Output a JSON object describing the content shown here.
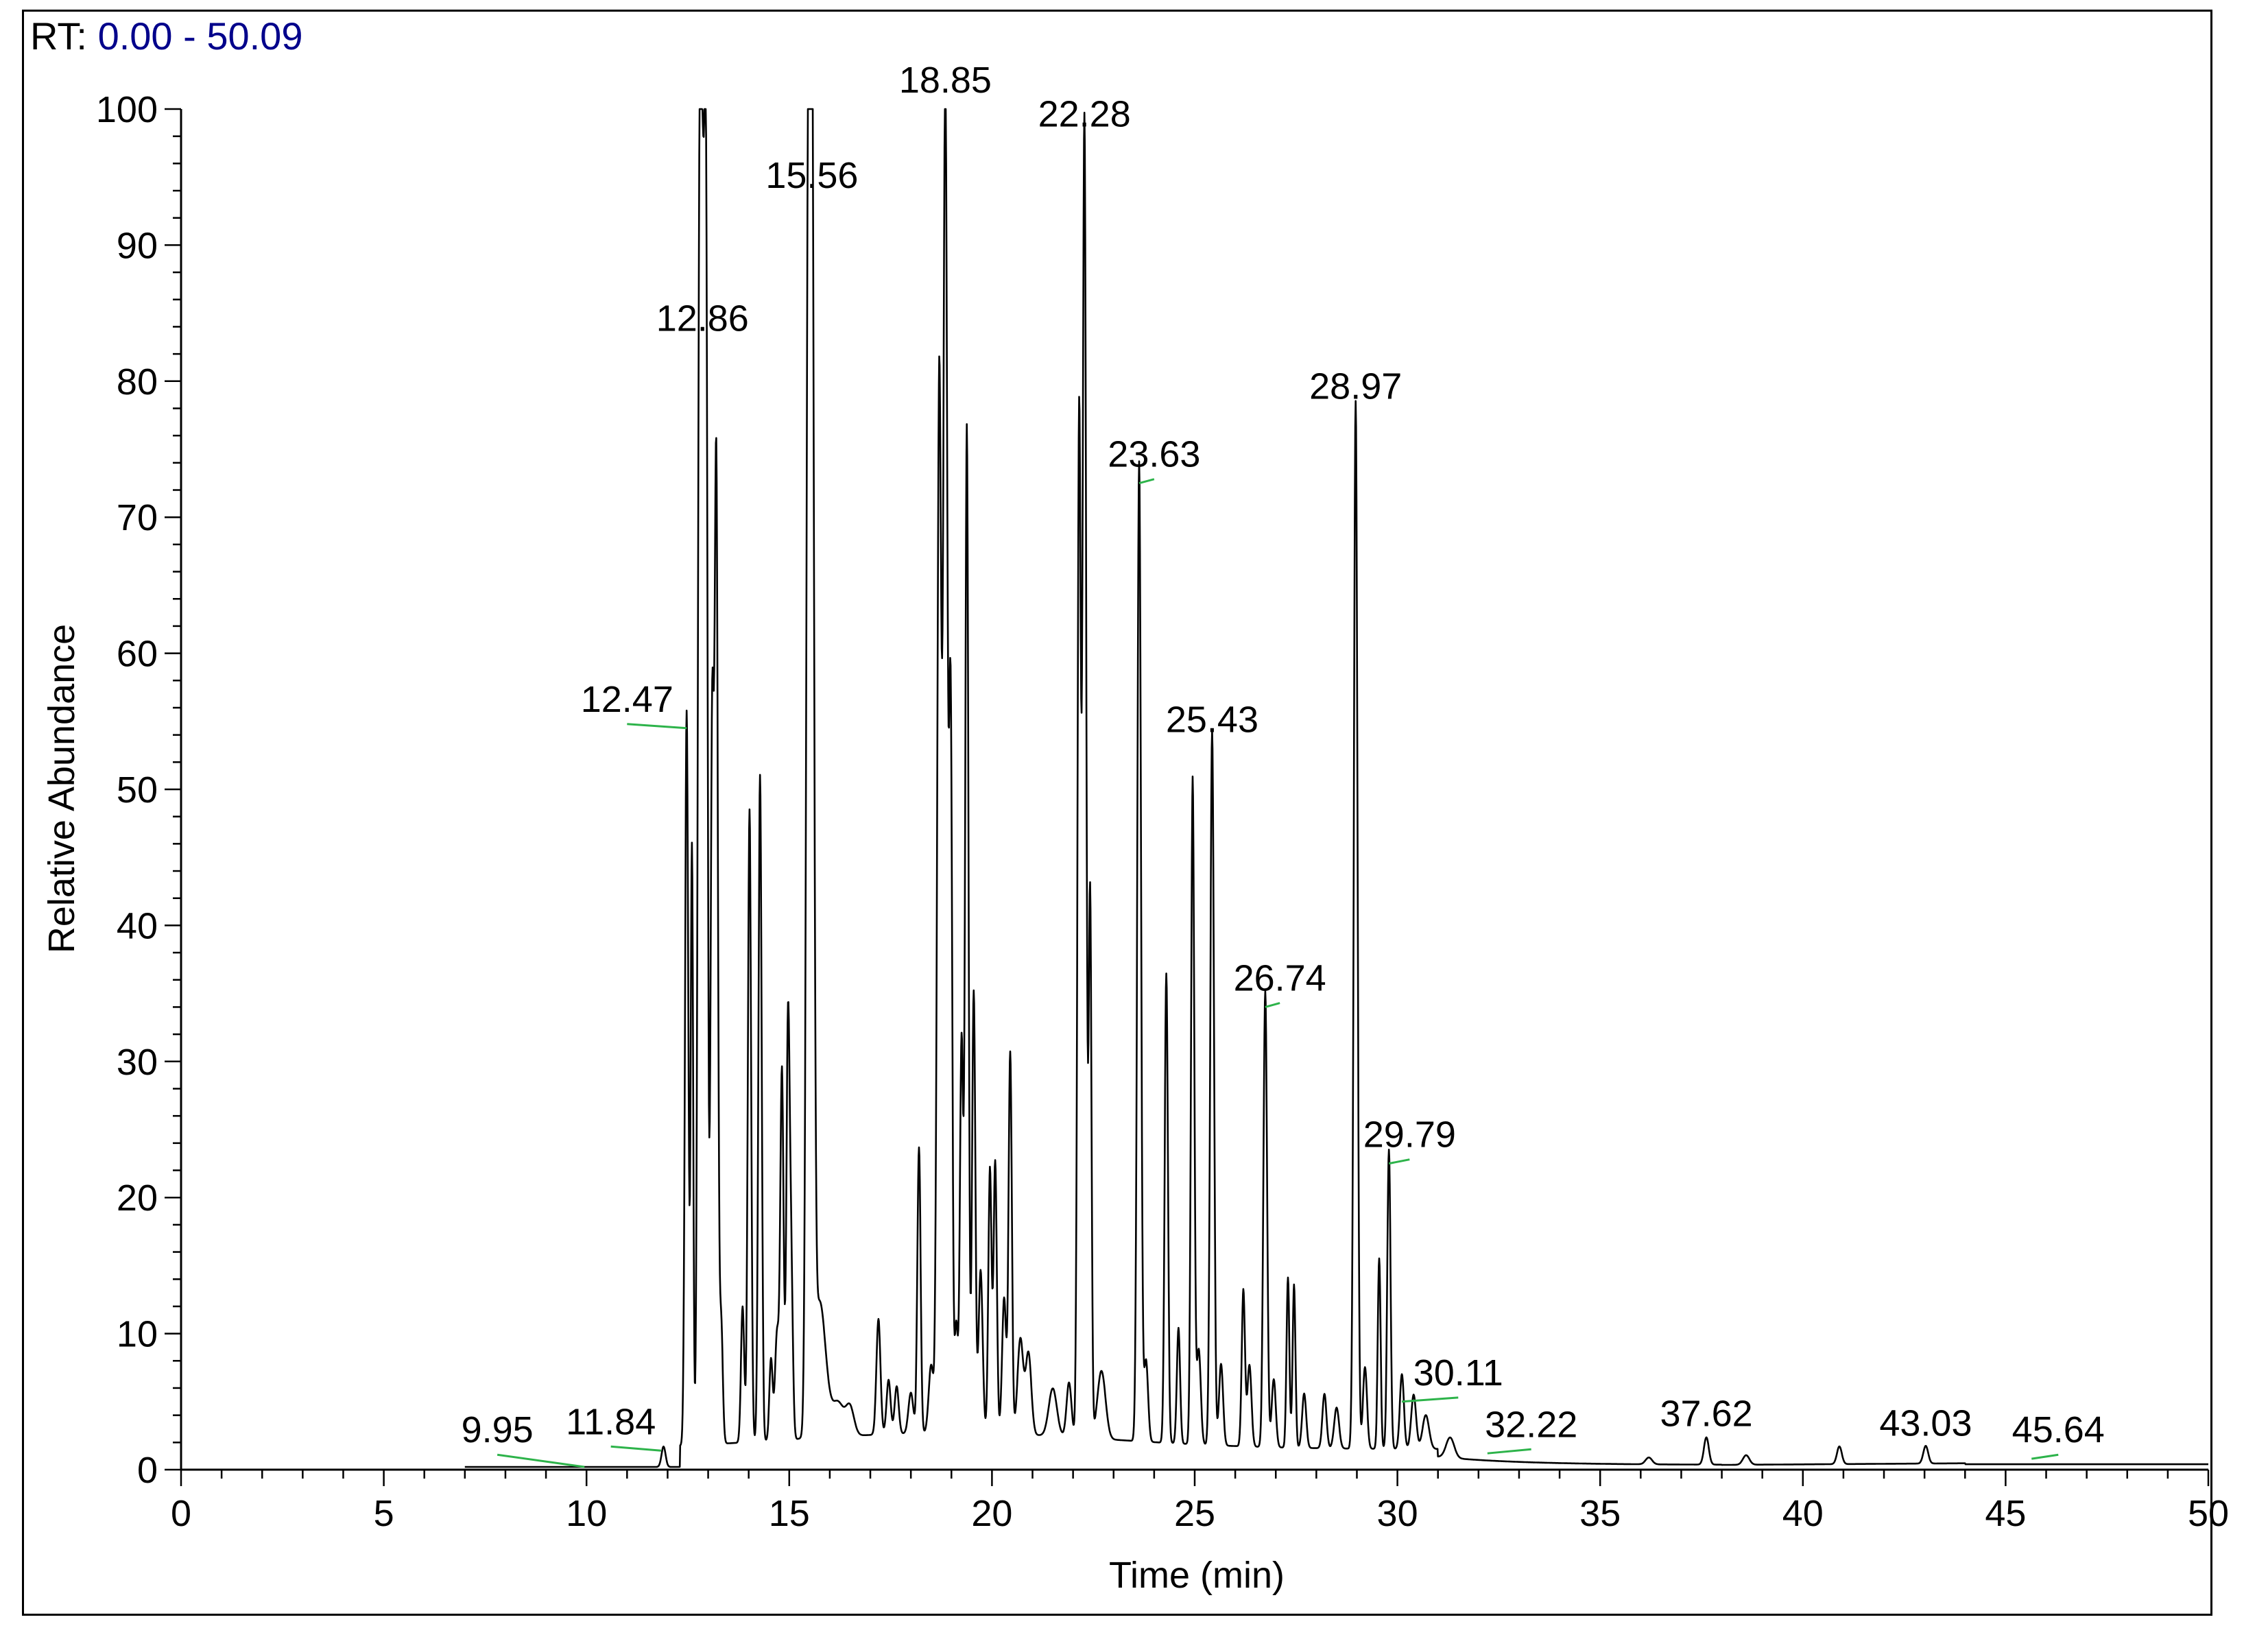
{
  "header": {
    "rt_prefix": "RT:",
    "rt_range": "0.00 - 50.09"
  },
  "chart_data": {
    "type": "line",
    "title": "",
    "xlabel": "Time (min)",
    "ylabel": "Relative Abundance",
    "xlim": [
      0,
      50
    ],
    "ylim": [
      0,
      100
    ],
    "x_ticks": [
      0,
      5,
      10,
      15,
      20,
      25,
      30,
      35,
      40,
      45,
      50
    ],
    "y_ticks": [
      0,
      10,
      20,
      30,
      40,
      50,
      60,
      70,
      80,
      90,
      100
    ],
    "trace_start": 7.0,
    "trace_end": 50.0,
    "line_color": "#000000",
    "label_marker_color": "#2db34a",
    "peaks": [
      [
        11.9,
        1.5,
        0.05
      ],
      [
        12.47,
        54,
        0.04
      ],
      [
        12.6,
        44,
        0.03
      ],
      [
        12.78,
        72,
        0.04
      ],
      [
        12.86,
        82,
        0.05
      ],
      [
        12.95,
        80,
        0.04
      ],
      [
        13.1,
        53,
        0.04
      ],
      [
        13.2,
        71.5,
        0.04
      ],
      [
        13.32,
        9,
        0.04
      ],
      [
        13.85,
        10,
        0.04
      ],
      [
        14.02,
        46.5,
        0.04
      ],
      [
        14.28,
        49,
        0.04
      ],
      [
        14.55,
        6,
        0.04
      ],
      [
        14.7,
        8,
        0.05
      ],
      [
        14.82,
        27,
        0.04
      ],
      [
        14.97,
        30.5,
        0.04
      ],
      [
        15.05,
        12,
        0.04
      ],
      [
        15.47,
        88,
        0.05
      ],
      [
        15.56,
        92.5,
        0.05
      ],
      [
        15.75,
        10,
        0.15
      ],
      [
        16.2,
        2.5,
        0.15
      ],
      [
        16.5,
        2,
        0.1
      ],
      [
        17.2,
        8.5,
        0.05
      ],
      [
        17.45,
        4,
        0.05
      ],
      [
        17.65,
        3.5,
        0.05
      ],
      [
        18.0,
        3,
        0.06
      ],
      [
        18.2,
        21,
        0.04
      ],
      [
        18.5,
        5,
        0.06
      ],
      [
        18.7,
        78,
        0.05
      ],
      [
        18.85,
        99.5,
        0.05
      ],
      [
        18.98,
        53,
        0.04
      ],
      [
        19.12,
        8,
        0.04
      ],
      [
        19.25,
        29,
        0.04
      ],
      [
        19.38,
        74,
        0.04
      ],
      [
        19.55,
        32.5,
        0.04
      ],
      [
        19.72,
        12,
        0.05
      ],
      [
        19.95,
        19.5,
        0.04
      ],
      [
        20.08,
        20,
        0.04
      ],
      [
        20.3,
        10,
        0.05
      ],
      [
        20.45,
        28,
        0.04
      ],
      [
        20.7,
        7,
        0.07
      ],
      [
        20.9,
        6,
        0.07
      ],
      [
        21.5,
        3.5,
        0.1
      ],
      [
        21.9,
        4,
        0.06
      ],
      [
        22.15,
        75,
        0.04
      ],
      [
        22.28,
        97,
        0.045
      ],
      [
        22.42,
        40,
        0.035
      ],
      [
        22.7,
        5,
        0.1
      ],
      [
        23.63,
        72,
        0.045
      ],
      [
        23.8,
        6,
        0.05
      ],
      [
        24.3,
        34.5,
        0.04
      ],
      [
        24.6,
        8.5,
        0.04
      ],
      [
        24.95,
        49,
        0.04
      ],
      [
        25.1,
        7,
        0.05
      ],
      [
        25.43,
        52.5,
        0.045
      ],
      [
        25.65,
        6,
        0.05
      ],
      [
        26.2,
        11.5,
        0.04
      ],
      [
        26.35,
        6,
        0.05
      ],
      [
        26.74,
        33.5,
        0.045
      ],
      [
        26.95,
        5,
        0.05
      ],
      [
        27.3,
        12.5,
        0.035
      ],
      [
        27.45,
        12,
        0.035
      ],
      [
        27.7,
        4,
        0.05
      ],
      [
        28.2,
        4,
        0.05
      ],
      [
        28.5,
        3,
        0.06
      ],
      [
        28.97,
        77,
        0.045
      ],
      [
        29.2,
        6,
        0.05
      ],
      [
        29.55,
        14,
        0.035
      ],
      [
        29.79,
        22,
        0.04
      ],
      [
        30.11,
        5.5,
        0.05
      ],
      [
        30.4,
        4,
        0.06
      ],
      [
        30.7,
        2.5,
        0.08
      ],
      [
        31.3,
        1.5,
        0.1
      ],
      [
        36.2,
        0.5,
        0.08
      ],
      [
        37.62,
        2,
        0.06
      ],
      [
        38.6,
        0.7,
        0.08
      ],
      [
        40.9,
        1.3,
        0.06
      ],
      [
        43.03,
        1.3,
        0.06
      ]
    ],
    "peak_labels": [
      {
        "rt": "9.95",
        "x": 9.95,
        "y": 0.2,
        "label_x": 7.8,
        "label_y": 1.3
      },
      {
        "rt": "11.84",
        "x": 11.84,
        "y": 1.4,
        "label_x": 10.6,
        "label_y": 1.9
      },
      {
        "rt": "12.47",
        "x": 12.47,
        "y": 54.5,
        "label_x": 11.0,
        "label_y": 55.0
      },
      {
        "rt": "12.86",
        "x": 12.86,
        "y": 82.5,
        "label_x": 12.86,
        "label_y": 83.0
      },
      {
        "rt": "15.56",
        "x": 15.56,
        "y": 93.0,
        "label_x": 15.56,
        "label_y": 93.5
      },
      {
        "rt": "18.85",
        "x": 18.85,
        "y": 100,
        "label_x": 18.85,
        "label_y": 100.5
      },
      {
        "rt": "22.28",
        "x": 22.28,
        "y": 97.5,
        "label_x": 22.28,
        "label_y": 98.0
      },
      {
        "rt": "23.63",
        "x": 23.63,
        "y": 72.5,
        "label_x": 24.0,
        "label_y": 73.0
      },
      {
        "rt": "25.43",
        "x": 25.43,
        "y": 53.0,
        "label_x": 25.43,
        "label_y": 53.5
      },
      {
        "rt": "26.74",
        "x": 26.74,
        "y": 34.0,
        "label_x": 27.1,
        "label_y": 34.5
      },
      {
        "rt": "28.97",
        "x": 28.97,
        "y": 77.5,
        "label_x": 28.97,
        "label_y": 78.0
      },
      {
        "rt": "29.79",
        "x": 29.79,
        "y": 22.5,
        "label_x": 30.3,
        "label_y": 23.0
      },
      {
        "rt": "30.11",
        "x": 30.11,
        "y": 5.0,
        "label_x": 31.5,
        "label_y": 5.5
      },
      {
        "rt": "32.22",
        "x": 32.22,
        "y": 1.2,
        "label_x": 33.3,
        "label_y": 1.7
      },
      {
        "rt": "37.62",
        "x": 37.62,
        "y": 2.0,
        "label_x": 37.62,
        "label_y": 2.5
      },
      {
        "rt": "43.03",
        "x": 43.03,
        "y": 1.3,
        "label_x": 43.03,
        "label_y": 1.8
      },
      {
        "rt": "45.64",
        "x": 45.64,
        "y": 0.8,
        "label_x": 46.3,
        "label_y": 1.3
      }
    ]
  }
}
